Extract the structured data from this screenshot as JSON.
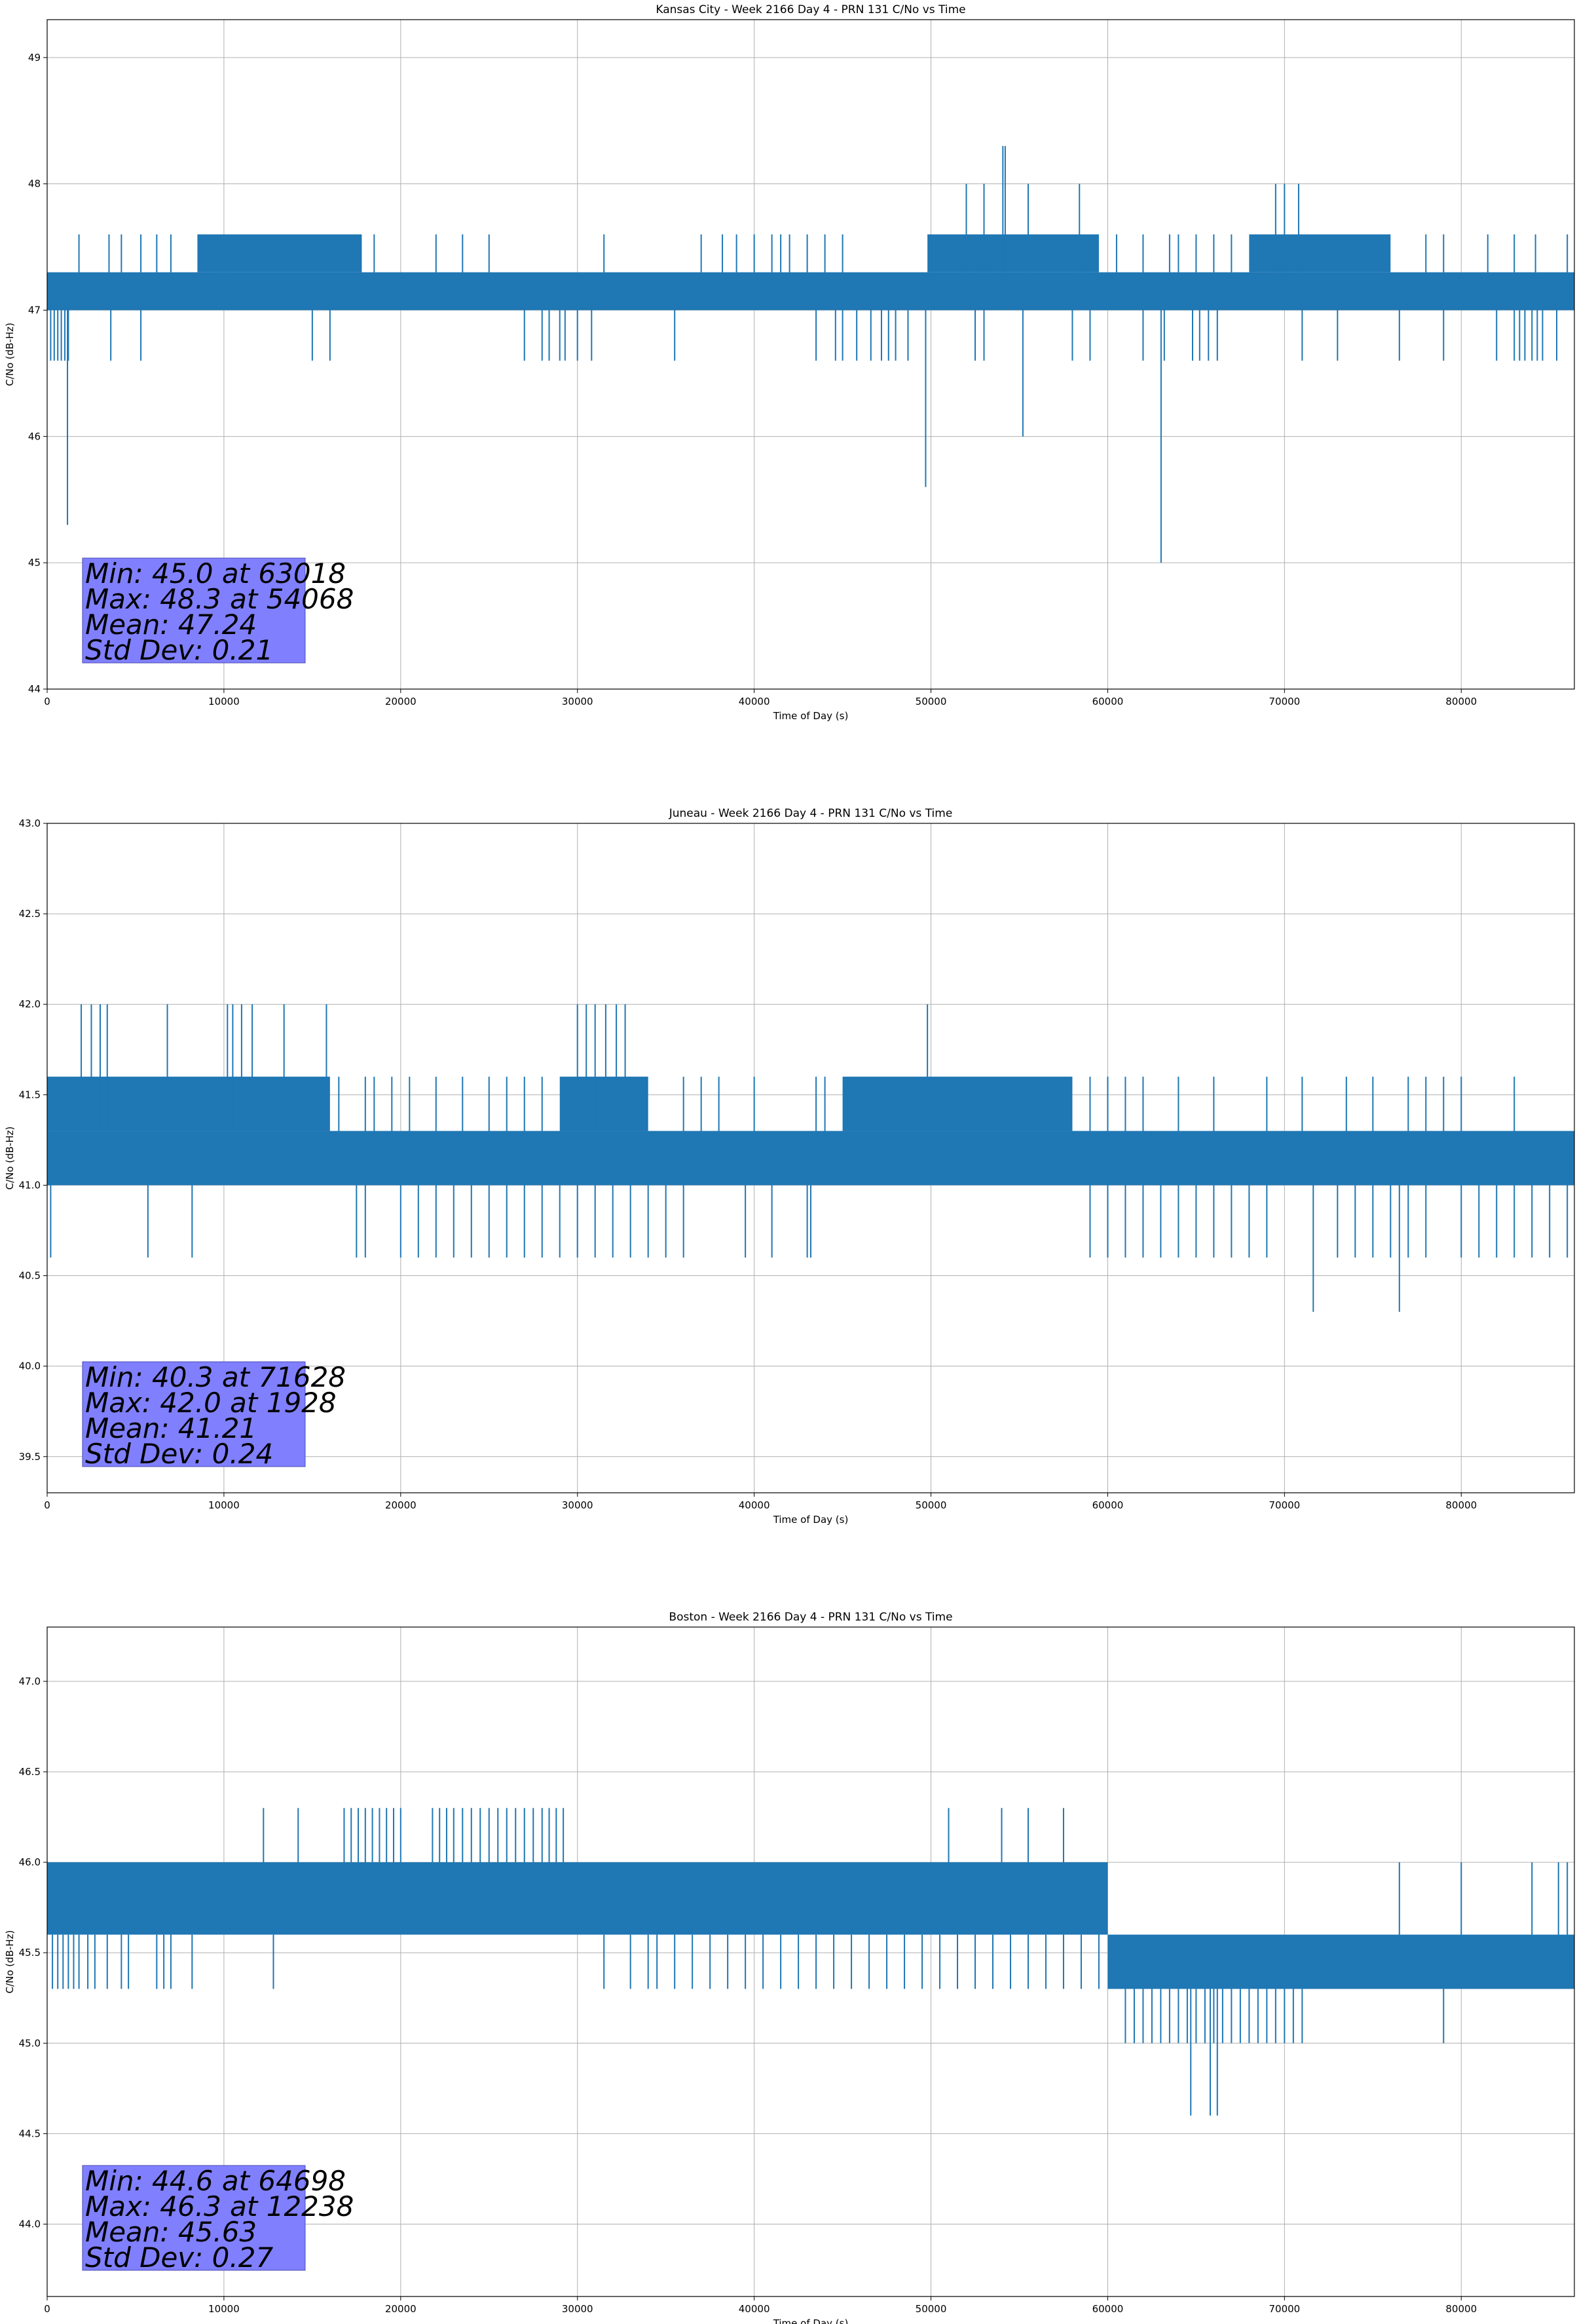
{
  "chart_data": [
    {
      "type": "line",
      "title": "Kansas City - Week 2166 Day 4 - PRN 131 C/No vs Time",
      "xlabel": "Time of Day (s)",
      "ylabel": "C/No (dB-Hz)",
      "xlim": [
        0,
        86400
      ],
      "ylim": [
        44,
        49.3
      ],
      "x_ticks": [
        0,
        10000,
        20000,
        30000,
        40000,
        50000,
        60000,
        70000,
        80000
      ],
      "y_ticks": [
        "44",
        "45",
        "46",
        "47",
        "48",
        "49"
      ],
      "grid": true,
      "color": "#1f77b4",
      "band_levels": [
        47.0,
        47.3
      ],
      "upper_level": 47.6,
      "lower_level": 46.6,
      "upper_segments": [
        [
          8500,
          17800
        ],
        [
          49800,
          59500
        ],
        [
          68000,
          76000
        ]
      ],
      "upper_spikes": [
        1800,
        3500,
        4200,
        5300,
        6200,
        7000,
        18500,
        22000,
        23500,
        25000,
        31500,
        37000,
        38200,
        39000,
        40000,
        41000,
        41500,
        42000,
        43000,
        44000,
        45000,
        60500,
        62000,
        63500,
        64000,
        65000,
        66000,
        67000,
        78000,
        79000,
        81500,
        83000,
        84200,
        86000
      ],
      "lower_spikes": [
        200,
        400,
        600,
        800,
        1000,
        1200,
        3600,
        5300,
        15000,
        16000,
        27000,
        28000,
        28400,
        29000,
        29300,
        30000,
        30800,
        35500,
        43500,
        44600,
        45000,
        45800,
        46600,
        47200,
        47600,
        48000,
        48700,
        52500,
        53000,
        58000,
        59000,
        62000,
        63200,
        64800,
        65200,
        65700,
        66200,
        71000,
        73000,
        76500,
        79000,
        82000,
        83000,
        83300,
        83600,
        84000,
        84300,
        84600,
        85400
      ],
      "deep_spikes": [
        [
          1150,
          45.3
        ],
        [
          49700,
          45.6
        ],
        [
          55200,
          46.0
        ],
        [
          63018,
          45.0
        ]
      ],
      "max_spikes": [
        [
          52000,
          48.0
        ],
        [
          53000,
          48.0
        ],
        [
          54068,
          48.3
        ],
        [
          54200,
          48.3
        ],
        [
          55500,
          48.0
        ],
        [
          58400,
          48.0
        ],
        [
          69500,
          48.0
        ],
        [
          70000,
          48.0
        ],
        [
          70800,
          48.0
        ]
      ],
      "stats": [
        "Min: 45.0 at 63018",
        "Max: 48.3 at 54068",
        "Mean: 47.24",
        "Std Dev: 0.21"
      ]
    },
    {
      "type": "line",
      "title": "Juneau - Week 2166 Day 4 - PRN 131 C/No vs Time",
      "xlabel": "Time of Day (s)",
      "ylabel": "C/No (dB-Hz)",
      "xlim": [
        0,
        86400
      ],
      "ylim": [
        39.3,
        43.0
      ],
      "x_ticks": [
        0,
        10000,
        20000,
        30000,
        40000,
        50000,
        60000,
        70000,
        80000
      ],
      "y_ticks": [
        "39.5",
        "40.0",
        "40.5",
        "41.0",
        "41.5",
        "42.0",
        "42.5",
        "43.0"
      ],
      "grid": true,
      "color": "#1f77b4",
      "band_levels": [
        41.0,
        41.3
      ],
      "upper_level": 41.6,
      "lower_level": 40.6,
      "upper_segments": [
        [
          0,
          16000
        ],
        [
          29000,
          34000
        ],
        [
          45000,
          58000
        ]
      ],
      "upper_spikes": [
        16500,
        18000,
        18500,
        19500,
        20500,
        22000,
        23500,
        25000,
        26000,
        27000,
        28000,
        36000,
        37000,
        38000,
        40000,
        43500,
        44000,
        59000,
        60000,
        61000,
        62000,
        64000,
        66000,
        69000,
        71000,
        73500,
        75000,
        77000,
        78000,
        79000,
        80000,
        83000
      ],
      "lower_spikes": [
        200,
        5700,
        8200,
        17500,
        18000,
        20000,
        21000,
        22000,
        23000,
        24000,
        25000,
        26000,
        27000,
        28000,
        29000,
        30000,
        31000,
        32000,
        33000,
        34000,
        35000,
        36000,
        39500,
        41000,
        43000,
        43200,
        59000,
        60000,
        61000,
        62000,
        63000,
        64000,
        65000,
        66000,
        67000,
        68000,
        69000,
        73000,
        74000,
        75000,
        76000,
        77000,
        78000,
        80000,
        81000,
        82000,
        83000,
        84000,
        85000,
        86000
      ],
      "deep_spikes": [
        [
          71628,
          40.3
        ],
        [
          76500,
          40.3
        ]
      ],
      "max_spikes": [
        [
          1928,
          42.0
        ],
        [
          2500,
          42.0
        ],
        [
          3000,
          42.0
        ],
        [
          3400,
          42.0
        ],
        [
          6800,
          42.0
        ],
        [
          10200,
          42.0
        ],
        [
          10500,
          42.0
        ],
        [
          11000,
          42.0
        ],
        [
          11600,
          42.0
        ],
        [
          13400,
          42.0
        ],
        [
          15800,
          42.0
        ],
        [
          30000,
          42.0
        ],
        [
          30500,
          42.0
        ],
        [
          31000,
          42.0
        ],
        [
          31600,
          42.0
        ],
        [
          32200,
          42.0
        ],
        [
          32700,
          42.0
        ],
        [
          49800,
          42.0
        ]
      ],
      "stats": [
        "Min: 40.3 at 71628",
        "Max: 42.0 at 1928",
        "Mean: 41.21",
        "Std Dev: 0.24"
      ]
    },
    {
      "type": "line",
      "title": "Boston - Week 2166 Day 4 - PRN 131 C/No vs Time",
      "xlabel": "Time of Day (s)",
      "ylabel": "C/No (dB-Hz)",
      "xlim": [
        0,
        86400
      ],
      "ylim": [
        43.6,
        47.3
      ],
      "x_ticks": [
        0,
        10000,
        20000,
        30000,
        40000,
        50000,
        60000,
        70000,
        80000
      ],
      "y_ticks": [
        "44.0",
        "44.5",
        "45.0",
        "45.5",
        "46.0",
        "46.5",
        "47.0"
      ],
      "grid": true,
      "color": "#1f77b4",
      "band_levels": [
        45.6,
        46.0
      ],
      "band_end": 60000,
      "band2_levels": [
        45.3,
        45.6
      ],
      "band2_start": 60000,
      "upper_level": 46.3,
      "lower_level": 45.3,
      "upper_segments": [],
      "upper_spikes": [
        12238,
        14200,
        16800,
        17200,
        17600,
        18000,
        18400,
        18800,
        19200,
        19600,
        20000,
        21800,
        22200,
        22600,
        23000,
        23500,
        24000,
        24500,
        25000,
        25500,
        26000,
        26500,
        27000,
        27500,
        28000,
        28400,
        28800,
        29200,
        51000,
        54000,
        55500,
        57500
      ],
      "lower_spikes": [
        300,
        600,
        900,
        1200,
        1500,
        1800,
        2300,
        2700,
        3400,
        4200,
        4600,
        6200,
        6600,
        7000,
        8200,
        12800,
        31500,
        33000,
        34000,
        34500,
        35500,
        36500,
        37500,
        38500,
        39500,
        40500,
        41500,
        42500,
        43500,
        44500,
        45500,
        46500,
        47500,
        48500,
        49500,
        50500,
        51500,
        52500,
        53500,
        54500,
        55500,
        56500,
        57500,
        58500,
        59500
      ],
      "second_band_low_spikes": [
        61000,
        61500,
        62000,
        62500,
        63000,
        63500,
        64000,
        64500,
        65000,
        65500,
        66000,
        66500,
        67000,
        67500,
        68000,
        68500,
        69000,
        69500,
        70000,
        70500,
        71000,
        79000
      ],
      "second_band_high_spikes": [
        76500,
        80000,
        84000,
        85500,
        86000
      ],
      "band2_top_spikes": [
        65000,
        66000,
        73000,
        81000,
        83000
      ],
      "deep_spikes": [
        [
          64698,
          44.6
        ],
        [
          65800,
          44.6
        ],
        [
          66200,
          44.6
        ]
      ],
      "max_spikes": [],
      "stats": [
        "Min: 44.6 at 64698",
        "Max: 46.3 at 12238",
        "Mean: 45.63",
        "Std Dev: 0.27"
      ]
    }
  ]
}
